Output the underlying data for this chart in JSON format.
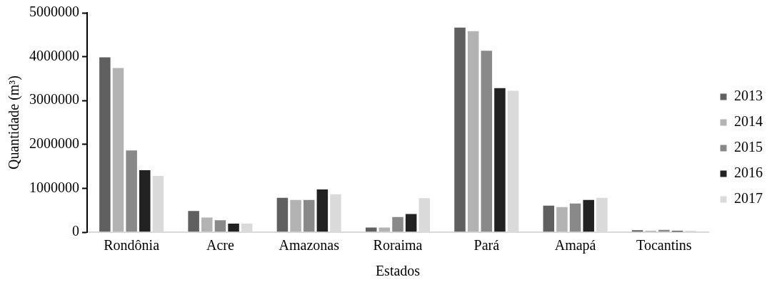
{
  "chart_data": {
    "type": "bar",
    "xlabel": "Estados",
    "ylabel": "Quantidade (m³)",
    "categories": [
      "Rondônia",
      "Acre",
      "Amazonas",
      "Roraima",
      "Pará",
      "Amapá",
      "Tocantins"
    ],
    "series": [
      {
        "name": "2013",
        "color": "#606060",
        "values": [
          4000000,
          500000,
          800000,
          120000,
          4680000,
          620000,
          60000
        ]
      },
      {
        "name": "2014",
        "color": "#b3b3b3",
        "values": [
          3760000,
          350000,
          750000,
          120000,
          4600000,
          590000,
          50000
        ]
      },
      {
        "name": "2015",
        "color": "#898989",
        "values": [
          1880000,
          290000,
          750000,
          360000,
          4150000,
          670000,
          70000
        ]
      },
      {
        "name": "2016",
        "color": "#222222",
        "values": [
          1430000,
          210000,
          990000,
          430000,
          3300000,
          750000,
          45000
        ]
      },
      {
        "name": "2017",
        "color": "#dadada",
        "values": [
          1300000,
          210000,
          880000,
          790000,
          3240000,
          800000,
          50000
        ]
      }
    ],
    "ylim": [
      0,
      5000000
    ],
    "yticks": [
      0,
      1000000,
      2000000,
      3000000,
      4000000,
      5000000
    ],
    "grid": false,
    "legend": "right"
  }
}
